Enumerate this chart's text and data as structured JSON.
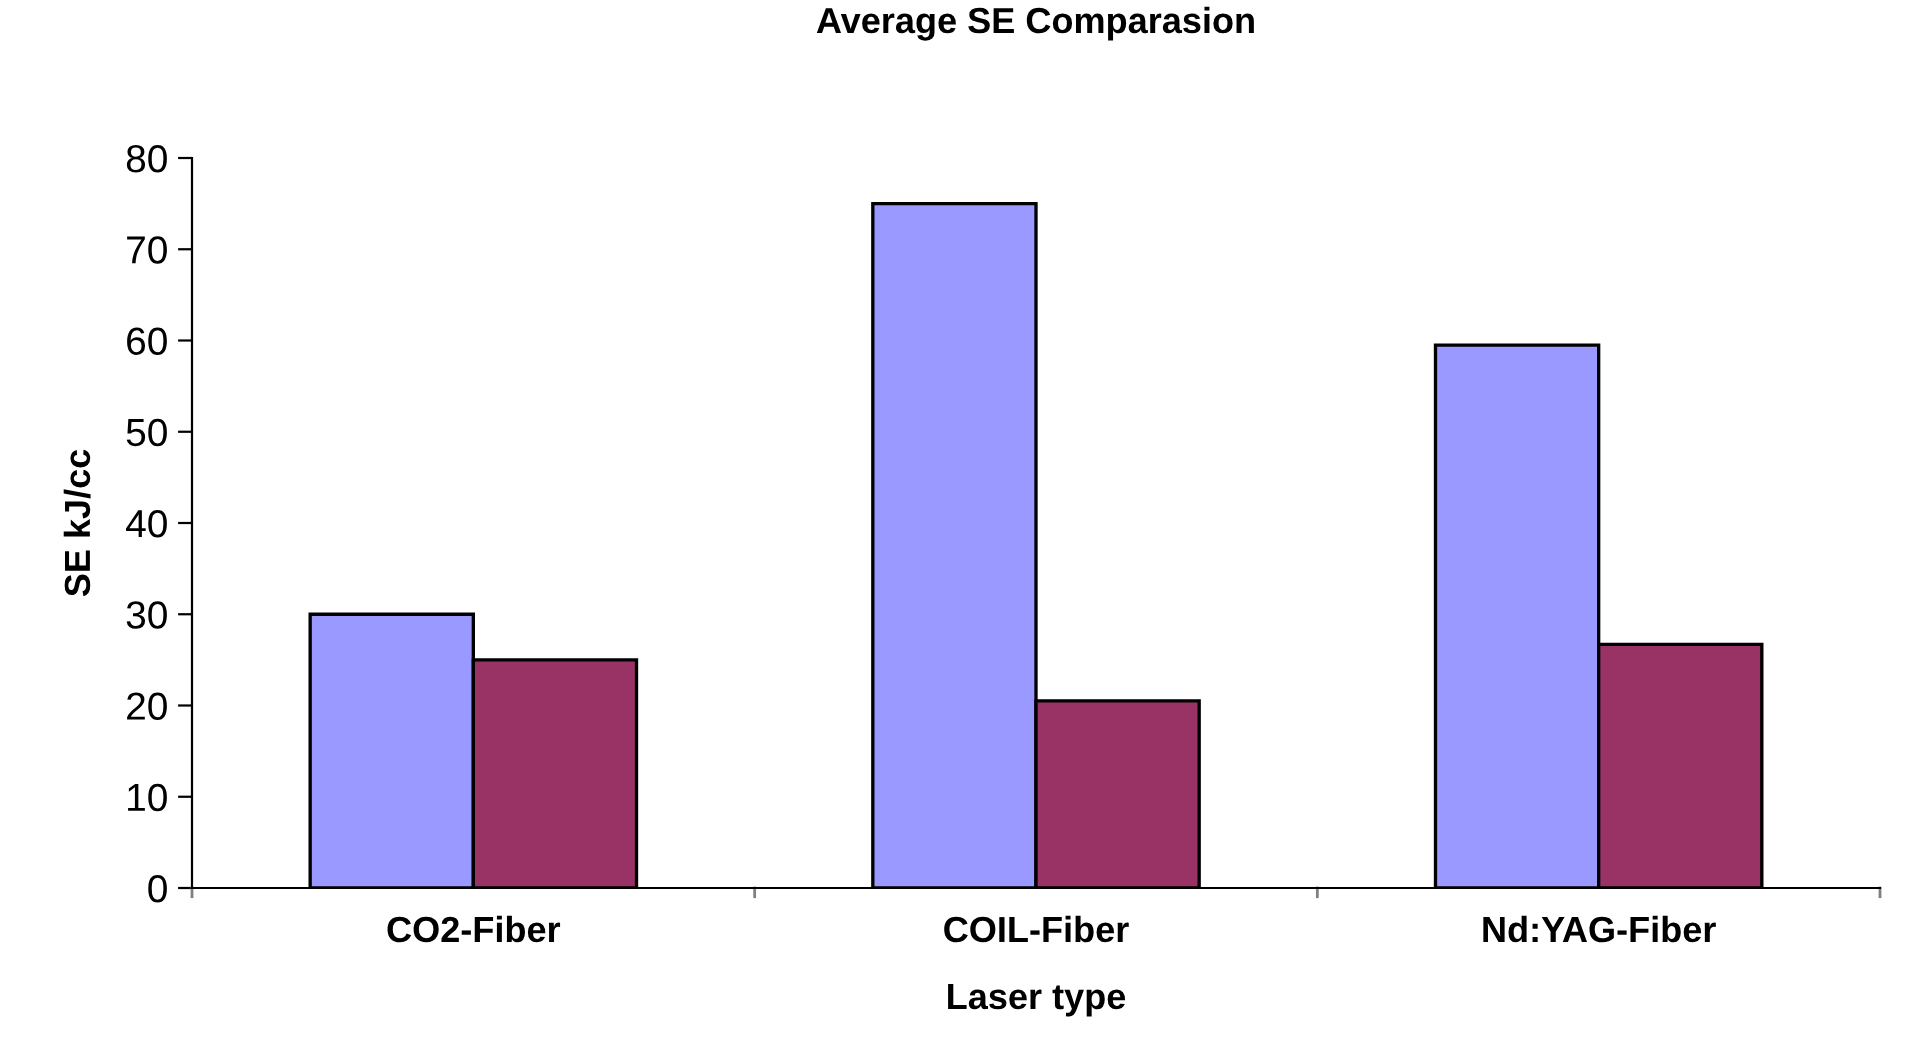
{
  "chart_data": {
    "type": "bar",
    "title": "Average SE Comparasion",
    "xlabel": "Laser type",
    "ylabel": "SE kJ/cc",
    "categories": [
      "CO2-Fiber",
      "COIL-Fiber",
      "Nd:YAG-Fiber"
    ],
    "series": [
      {
        "color": "#9999ff",
        "values": [
          30,
          75,
          59.5
        ]
      },
      {
        "color": "#993366",
        "values": [
          25,
          20.5,
          26.7
        ]
      }
    ],
    "ylim": [
      0,
      80
    ],
    "yticks": [
      0,
      10,
      20,
      30,
      40,
      50,
      60,
      70,
      80
    ],
    "grid": false,
    "legend": false
  }
}
